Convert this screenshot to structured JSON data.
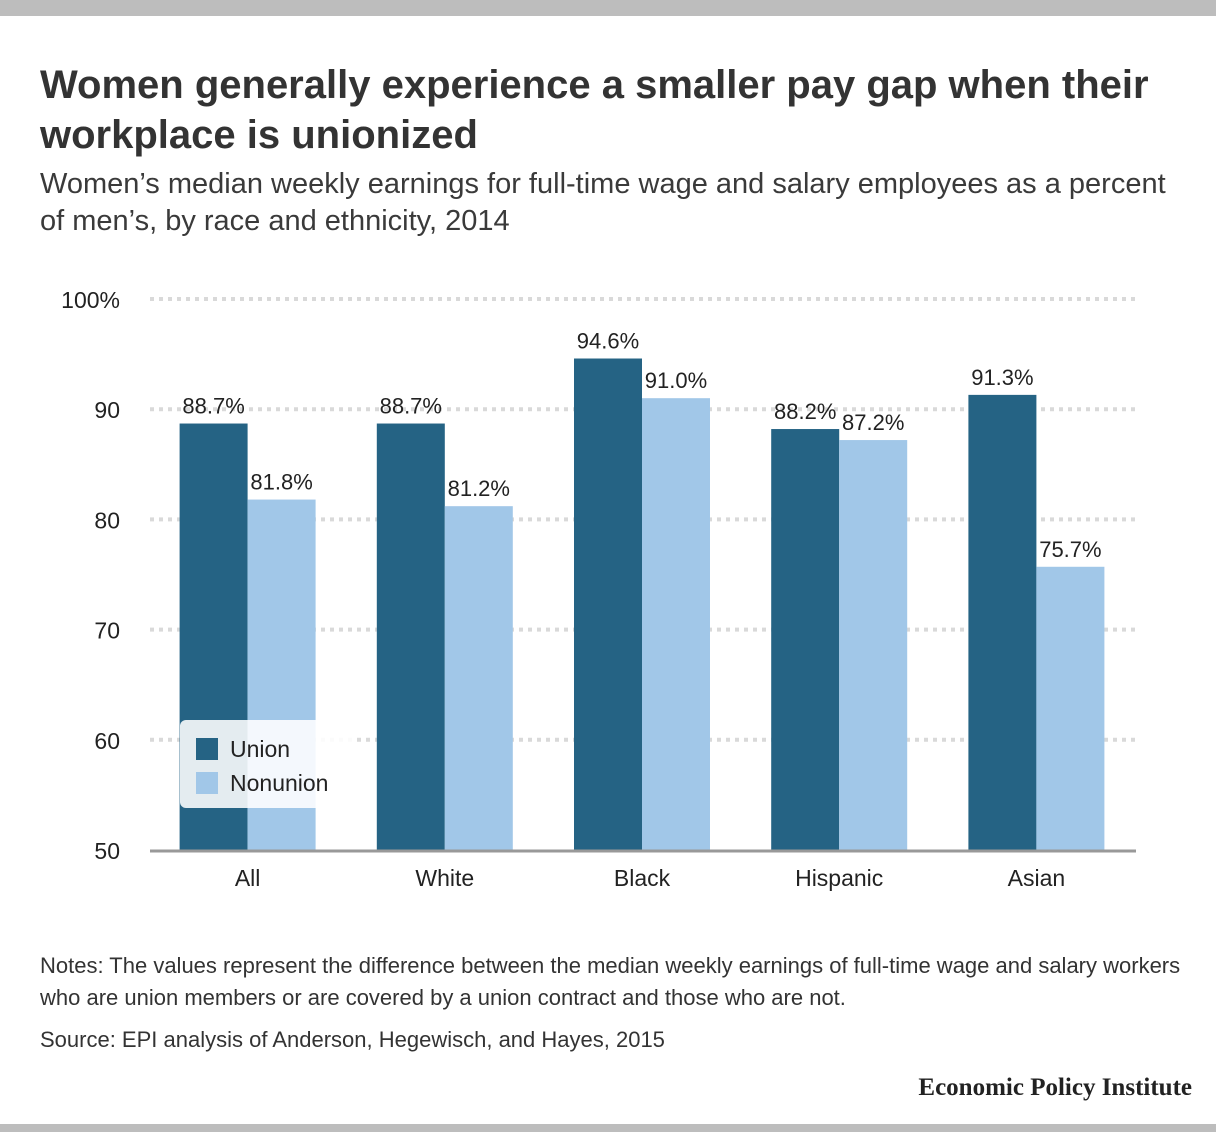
{
  "title": "Women generally experience a smaller pay gap when their workplace is unionized",
  "subtitle": "Women’s median weekly earnings for full-time wage and salary employees as a percent of men’s, by race and ethnicity, 2014",
  "notes": "Notes: The values represent the difference between the median weekly earnings of full-time wage and salary workers who are union members or are covered by a union contract and those who are not.",
  "source": "Source: EPI analysis of Anderson, Hegewisch, and Hayes, 2015",
  "brand": "Economic Policy Institute",
  "legend": {
    "union": "Union",
    "nonunion": "Nonunion"
  },
  "colors": {
    "union": "#256384",
    "nonunion": "#a1c7e8",
    "grid": "#d9d9d9",
    "baseline": "#999999"
  },
  "chart_data": {
    "type": "bar",
    "title": "Women generally experience a smaller pay gap when their workplace is unionized",
    "categories": [
      "All",
      "White",
      "Black",
      "Hispanic",
      "Asian"
    ],
    "series": [
      {
        "name": "Union",
        "values": [
          88.7,
          88.7,
          94.6,
          88.2,
          91.3
        ],
        "labels": [
          "88.7%",
          "88.7%",
          "94.6%",
          "88.2%",
          "91.3%"
        ]
      },
      {
        "name": "Nonunion",
        "values": [
          81.8,
          81.2,
          91.0,
          87.2,
          75.7
        ],
        "labels": [
          "81.8%",
          "81.2%",
          "91.0%",
          "87.2%",
          "75.7%"
        ]
      }
    ],
    "yticks": [
      "50",
      "60",
      "70",
      "80",
      "90",
      "100%"
    ],
    "ylim": [
      50,
      100
    ],
    "xlabel": "",
    "ylabel": "",
    "grid": true,
    "legend_position": "bottom-left"
  }
}
